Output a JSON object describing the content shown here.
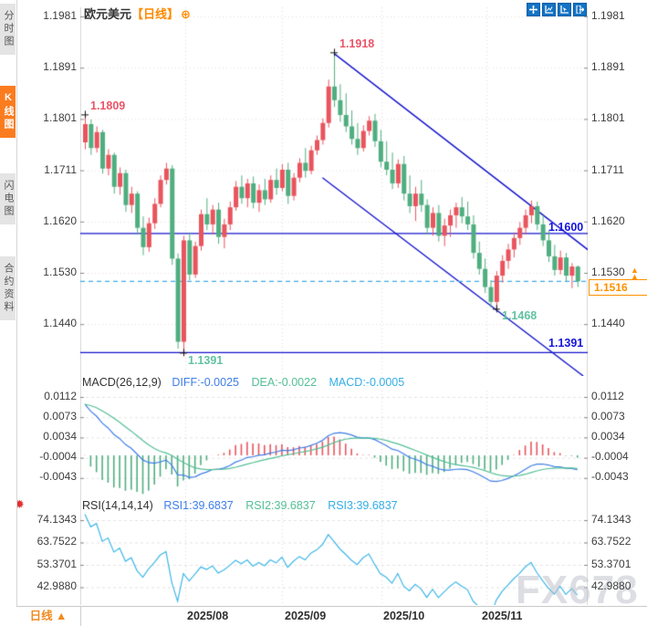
{
  "header": {
    "symbol": "欧元美元",
    "period_tag": "【日线】",
    "add_icon": "⊕"
  },
  "sidebar": {
    "tabs": [
      {
        "label": "分时图",
        "active": false
      },
      {
        "label": "K线图",
        "active": true
      },
      {
        "label": "闪电图",
        "active": false
      },
      {
        "label": "合约资料",
        "active": false
      }
    ]
  },
  "toolbar": {
    "icons": [
      "pan-crosshair",
      "axis-scale",
      "axis-pointer",
      "exit-fullscreen"
    ]
  },
  "axes": {
    "price_ticks": [
      "1.1981",
      "1.1891",
      "1.1801",
      "1.1711",
      "1.1620",
      "1.1530",
      "1.1440"
    ],
    "macd_ticks": [
      "0.0112",
      "0.0073",
      "0.0034",
      "-0.0004",
      "-0.0043"
    ],
    "rsi_ticks": [
      "74.1343",
      "63.7522",
      "53.3701",
      "42.9880"
    ]
  },
  "annotations": {
    "first_high": "1.1809",
    "swing_high": "1.1918",
    "swing_low": "1.1391",
    "recent_low": "1.1468",
    "resistance": "1.1600",
    "support": "1.1391",
    "last_price": "1.1516",
    "up_arrows": "▲"
  },
  "macd_panel": {
    "title": "MACD(26,12,9)",
    "diff_label": "DIFF:-0.0025",
    "dea_label": "DEA:-0.0022",
    "macd_label": "MACD:-0.0005"
  },
  "rsi_panel": {
    "title": "RSI(14,14,14)",
    "rsi1_label": "RSI1:39.6837",
    "rsi2_label": "RSI2:39.6837",
    "rsi3_label": "RSI3:39.6837",
    "settings_icon": "✹"
  },
  "bottom_bar": {
    "period_label": "日线 ▲",
    "dates": [
      "2025/08",
      "2025/09",
      "2025/10",
      "2025/11"
    ]
  },
  "watermark": "FX678",
  "colors": {
    "up_candle": "#e9545d",
    "down_candle": "#4fae7f",
    "trendline": "#1414cc",
    "last_price_line": "#3fa9e8",
    "accent_orange": "#ff8a00",
    "active_tab": "#fb7c1f",
    "diff_line": "#3f7ee8",
    "dea_line": "#53bf95",
    "rsi_line": "#3fb6e8",
    "annotation_red": "#ea5467",
    "annotation_teal": "#62c2a2"
  },
  "chart_data": {
    "type": "candlestick",
    "title": "欧元美元【日线】 EUR/USD Daily",
    "x_axis_months": [
      "2025/08",
      "2025/09",
      "2025/10",
      "2025/11"
    ],
    "price_axis_ticks": [
      1.1981,
      1.1891,
      1.1801,
      1.1711,
      1.162,
      1.153,
      1.144
    ],
    "key_levels": {
      "resistance": 1.16,
      "support": 1.1391,
      "last_price": 1.1516,
      "first_high": 1.1809,
      "swing_high": 1.1918,
      "swing_low": 1.1391,
      "recent_low": 1.1468
    },
    "markers": [
      {
        "index": 0,
        "price": 1.1809,
        "side": "high"
      },
      {
        "index": 43,
        "price": 1.1918,
        "side": "high"
      },
      {
        "index": 17,
        "price": 1.1391,
        "side": "low"
      },
      {
        "index": 71,
        "price": 1.1468,
        "side": "low"
      }
    ],
    "trendlines": [
      {
        "from": {
          "index": 43,
          "price": 1.1916
        },
        "to": {
          "index": 87,
          "price": 1.157
        }
      },
      {
        "from": {
          "index": 41,
          "price": 1.1698
        },
        "to": {
          "index": 86,
          "price": 1.135
        }
      }
    ],
    "macd": {
      "params": [
        26,
        12,
        9
      ],
      "diff": -0.0025,
      "dea": -0.0022,
      "macd": -0.0005,
      "axis_ticks": [
        0.0112,
        0.0073,
        0.0034,
        -0.0004,
        -0.0043
      ]
    },
    "rsi": {
      "params": [
        14,
        14,
        14
      ],
      "rsi1": 39.6837,
      "rsi2": 39.6837,
      "rsi3": 39.6837,
      "axis_ticks": [
        74.1343,
        63.7522,
        53.3701,
        42.988
      ]
    },
    "candles_ohlc": [
      [
        1.176,
        1.1809,
        1.1748,
        1.1792
      ],
      [
        1.1792,
        1.18,
        1.1738,
        1.175
      ],
      [
        1.175,
        1.1788,
        1.1742,
        1.1778
      ],
      [
        1.1778,
        1.1782,
        1.1705,
        1.1714
      ],
      [
        1.1714,
        1.1748,
        1.1702,
        1.1738
      ],
      [
        1.1738,
        1.1742,
        1.167,
        1.1682
      ],
      [
        1.1682,
        1.1716,
        1.1668,
        1.1706
      ],
      [
        1.1706,
        1.1712,
        1.1638,
        1.165
      ],
      [
        1.165,
        1.1682,
        1.1636,
        1.167
      ],
      [
        1.167,
        1.1674,
        1.1598,
        1.161
      ],
      [
        1.161,
        1.163,
        1.1562,
        1.1576
      ],
      [
        1.1576,
        1.1628,
        1.1568,
        1.1618
      ],
      [
        1.1618,
        1.1662,
        1.1608,
        1.1652
      ],
      [
        1.1652,
        1.1702,
        1.1646,
        1.1694
      ],
      [
        1.1694,
        1.1724,
        1.1686,
        1.1714
      ],
      [
        1.1714,
        1.172,
        1.1545,
        1.1556
      ],
      [
        1.1556,
        1.1565,
        1.1398,
        1.141
      ],
      [
        1.141,
        1.1596,
        1.1391,
        1.1588
      ],
      [
        1.1588,
        1.1602,
        1.1518,
        1.1528
      ],
      [
        1.1528,
        1.1586,
        1.1522,
        1.1578
      ],
      [
        1.1578,
        1.1642,
        1.157,
        1.1634
      ],
      [
        1.1634,
        1.1662,
        1.1606,
        1.1616
      ],
      [
        1.1616,
        1.165,
        1.1598,
        1.1642
      ],
      [
        1.1642,
        1.1654,
        1.1582,
        1.1594
      ],
      [
        1.1594,
        1.1626,
        1.1574,
        1.1616
      ],
      [
        1.1616,
        1.1656,
        1.1606,
        1.1646
      ],
      [
        1.1646,
        1.1692,
        1.164,
        1.1682
      ],
      [
        1.1682,
        1.1702,
        1.1652,
        1.1662
      ],
      [
        1.1662,
        1.1696,
        1.1646,
        1.1688
      ],
      [
        1.1688,
        1.17,
        1.1644,
        1.1654
      ],
      [
        1.1654,
        1.1686,
        1.1638,
        1.1676
      ],
      [
        1.1676,
        1.1696,
        1.165,
        1.166
      ],
      [
        1.166,
        1.1702,
        1.1654,
        1.1694
      ],
      [
        1.1694,
        1.1714,
        1.1668,
        1.168
      ],
      [
        1.168,
        1.1722,
        1.1674,
        1.1712
      ],
      [
        1.1712,
        1.1724,
        1.1652,
        1.1666
      ],
      [
        1.1666,
        1.1706,
        1.1658,
        1.1698
      ],
      [
        1.1698,
        1.1732,
        1.169,
        1.1724
      ],
      [
        1.1724,
        1.175,
        1.1698,
        1.171
      ],
      [
        1.171,
        1.1754,
        1.1704,
        1.1746
      ],
      [
        1.1746,
        1.1772,
        1.1738,
        1.1764
      ],
      [
        1.1764,
        1.1802,
        1.1756,
        1.1794
      ],
      [
        1.1794,
        1.187,
        1.1786,
        1.1858
      ],
      [
        1.1858,
        1.1918,
        1.1822,
        1.1834
      ],
      [
        1.1834,
        1.1862,
        1.1796,
        1.1808
      ],
      [
        1.1808,
        1.1846,
        1.1778,
        1.1788
      ],
      [
        1.1788,
        1.1816,
        1.1756,
        1.1766
      ],
      [
        1.1766,
        1.1794,
        1.1738,
        1.175
      ],
      [
        1.175,
        1.179,
        1.1744,
        1.178
      ],
      [
        1.178,
        1.1806,
        1.1772,
        1.1798
      ],
      [
        1.1798,
        1.181,
        1.1752,
        1.1762
      ],
      [
        1.1762,
        1.1782,
        1.1716,
        1.1726
      ],
      [
        1.1726,
        1.1762,
        1.1702,
        1.1712
      ],
      [
        1.1712,
        1.1742,
        1.1678,
        1.1688
      ],
      [
        1.1688,
        1.173,
        1.168,
        1.1722
      ],
      [
        1.1722,
        1.1736,
        1.1658,
        1.167
      ],
      [
        1.167,
        1.1702,
        1.1636,
        1.1648
      ],
      [
        1.1648,
        1.1682,
        1.1622,
        1.167
      ],
      [
        1.167,
        1.1694,
        1.1638,
        1.165
      ],
      [
        1.165,
        1.166,
        1.1598,
        1.161
      ],
      [
        1.161,
        1.1646,
        1.1596,
        1.1636
      ],
      [
        1.1636,
        1.165,
        1.1586,
        1.1596
      ],
      [
        1.1596,
        1.1626,
        1.1578,
        1.1614
      ],
      [
        1.1614,
        1.1642,
        1.1594,
        1.1632
      ],
      [
        1.1632,
        1.1654,
        1.161,
        1.1646
      ],
      [
        1.1646,
        1.1664,
        1.1618,
        1.163
      ],
      [
        1.163,
        1.1656,
        1.1606,
        1.1616
      ],
      [
        1.1616,
        1.1632,
        1.1556,
        1.1566
      ],
      [
        1.1566,
        1.1586,
        1.1528,
        1.1538
      ],
      [
        1.1538,
        1.1556,
        1.1496,
        1.1506
      ],
      [
        1.1506,
        1.1518,
        1.147,
        1.148
      ],
      [
        1.148,
        1.1534,
        1.1468,
        1.1526
      ],
      [
        1.1526,
        1.1562,
        1.1514,
        1.1552
      ],
      [
        1.1552,
        1.1582,
        1.1538,
        1.1572
      ],
      [
        1.1572,
        1.1602,
        1.1558,
        1.1592
      ],
      [
        1.1592,
        1.162,
        1.158,
        1.161
      ],
      [
        1.161,
        1.1642,
        1.1598,
        1.1632
      ],
      [
        1.1632,
        1.1658,
        1.1618,
        1.1648
      ],
      [
        1.1648,
        1.1656,
        1.1606,
        1.1616
      ],
      [
        1.1616,
        1.1632,
        1.1578,
        1.1588
      ],
      [
        1.1588,
        1.1606,
        1.155,
        1.156
      ],
      [
        1.156,
        1.158,
        1.1526,
        1.1536
      ],
      [
        1.1536,
        1.157,
        1.1528,
        1.1558
      ],
      [
        1.1558,
        1.1566,
        1.1516,
        1.1526
      ],
      [
        1.1526,
        1.1548,
        1.1504,
        1.1542
      ],
      [
        1.1542,
        1.1544,
        1.1506,
        1.1516
      ]
    ]
  }
}
